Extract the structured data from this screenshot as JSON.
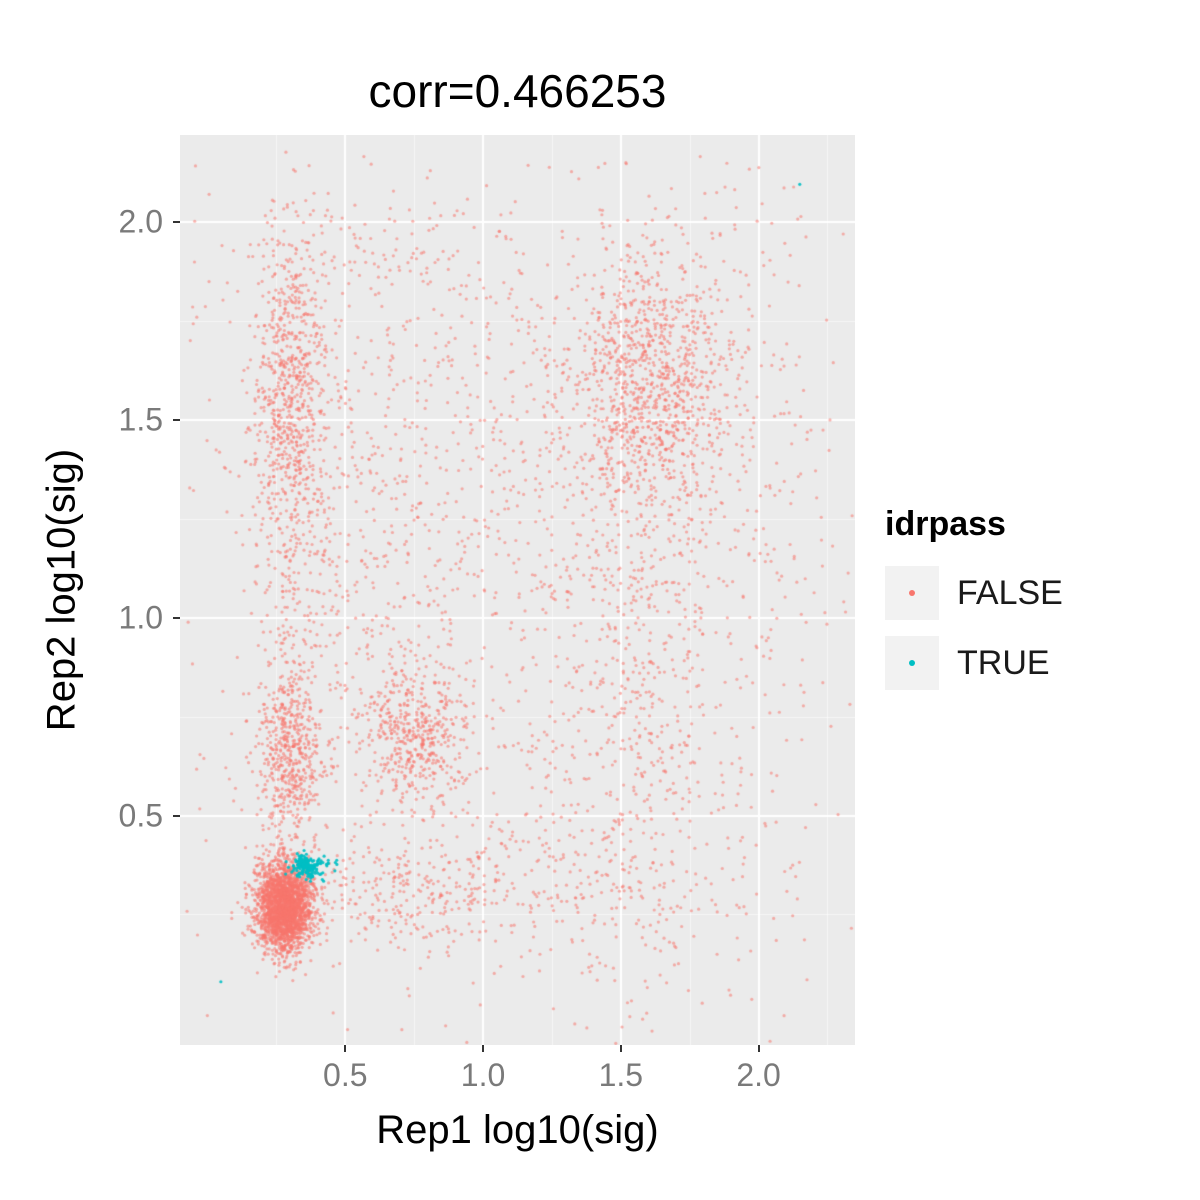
{
  "title": "corr=0.466253",
  "axes": {
    "x_label": "Rep1 log10(sig)",
    "y_label": "Rep2 log10(sig)",
    "x_tick_labels": [
      "0.5",
      "1.0",
      "1.5",
      "2.0"
    ],
    "y_tick_labels": [
      "0.5",
      "1.0",
      "1.5",
      "2.0"
    ],
    "x_range": [
      -0.1,
      2.35
    ],
    "y_range": [
      -0.08,
      2.22
    ]
  },
  "legend": {
    "title": "idrpass",
    "entries": [
      {
        "label": "FALSE",
        "color": "#F8766D"
      },
      {
        "label": "TRUE",
        "color": "#00BFC4"
      }
    ]
  },
  "colors": {
    "panel_bg": "#EBEBEB",
    "grid_major": "#FFFFFF",
    "grid_minor": "rgba(255,255,255,0.55)",
    "false_point": "#F8766D",
    "true_point": "#00BFC4",
    "tick_text": "#7a7a7a"
  },
  "chart_data": {
    "type": "scatter",
    "title": "corr=0.466253",
    "correlation": 0.466253,
    "xlabel": "Rep1 log10(sig)",
    "ylabel": "Rep2 log10(sig)",
    "xlim": [
      -0.1,
      2.35
    ],
    "ylim": [
      -0.08,
      2.22
    ],
    "x_major_ticks": [
      0.5,
      1.0,
      1.5,
      2.0
    ],
    "y_major_ticks": [
      0.5,
      1.0,
      1.5,
      2.0
    ],
    "x_minor_ticks": [
      0.25,
      0.75,
      1.25,
      1.75,
      2.25
    ],
    "y_minor_ticks": [
      0.25,
      0.75,
      1.25,
      1.75
    ],
    "grid": true,
    "legend_position": "right",
    "point_radius_px": 1.6,
    "series": [
      {
        "name": "FALSE",
        "color": "#F8766D",
        "alpha": 0.55,
        "clusters": [
          {
            "cx": 0.28,
            "cy": 0.27,
            "sx": 0.05,
            "sy": 0.055,
            "n": 2500
          },
          {
            "cx": 0.3,
            "cy": 0.65,
            "sx": 0.06,
            "sy": 0.1,
            "n": 500
          },
          {
            "cx": 0.3,
            "cy": 1.55,
            "sx": 0.07,
            "sy": 0.18,
            "n": 600
          },
          {
            "cx": 0.3,
            "cy": 1.1,
            "sx": 0.07,
            "sy": 0.25,
            "n": 250
          },
          {
            "cx": 0.32,
            "cy": 1.9,
            "sx": 0.07,
            "sy": 0.1,
            "n": 80
          },
          {
            "cx": 0.75,
            "cy": 0.7,
            "sx": 0.1,
            "sy": 0.09,
            "n": 450
          },
          {
            "cx": 0.65,
            "cy": 1.2,
            "sx": 0.15,
            "sy": 0.35,
            "n": 250
          },
          {
            "cx": 1.62,
            "cy": 1.6,
            "sx": 0.14,
            "sy": 0.16,
            "n": 900
          },
          {
            "cx": 1.55,
            "cy": 0.9,
            "sx": 0.15,
            "sy": 0.45,
            "n": 500
          },
          {
            "cx": 0.7,
            "cy": 0.3,
            "sx": 0.25,
            "sy": 0.08,
            "n": 300
          },
          {
            "cx": 1.5,
            "cy": 0.33,
            "sx": 0.35,
            "sy": 0.1,
            "n": 150
          },
          {
            "cx": 1.2,
            "cy": 1.5,
            "sx": 0.45,
            "sy": 0.3,
            "n": 400
          },
          {
            "cx": 1.1,
            "cy": 0.9,
            "sx": 0.6,
            "sy": 0.55,
            "n": 700
          },
          {
            "cx": 0.6,
            "cy": 1.85,
            "sx": 0.35,
            "sy": 0.12,
            "n": 120
          },
          {
            "cx": 1.9,
            "cy": 1.3,
            "sx": 0.2,
            "sy": 0.5,
            "n": 200
          }
        ]
      },
      {
        "name": "TRUE",
        "color": "#00BFC4",
        "alpha": 0.9,
        "clusters": [
          {
            "cx": 0.36,
            "cy": 0.37,
            "sx": 0.025,
            "sy": 0.015,
            "n": 180
          },
          {
            "cx": 0.44,
            "cy": 0.38,
            "sx": 0.025,
            "sy": 0.008,
            "n": 10
          },
          {
            "cx": 2.15,
            "cy": 2.09,
            "sx": 0.002,
            "sy": 0.002,
            "n": 1
          },
          {
            "cx": 0.05,
            "cy": 0.08,
            "sx": 0.002,
            "sy": 0.002,
            "n": 1
          }
        ]
      }
    ]
  }
}
